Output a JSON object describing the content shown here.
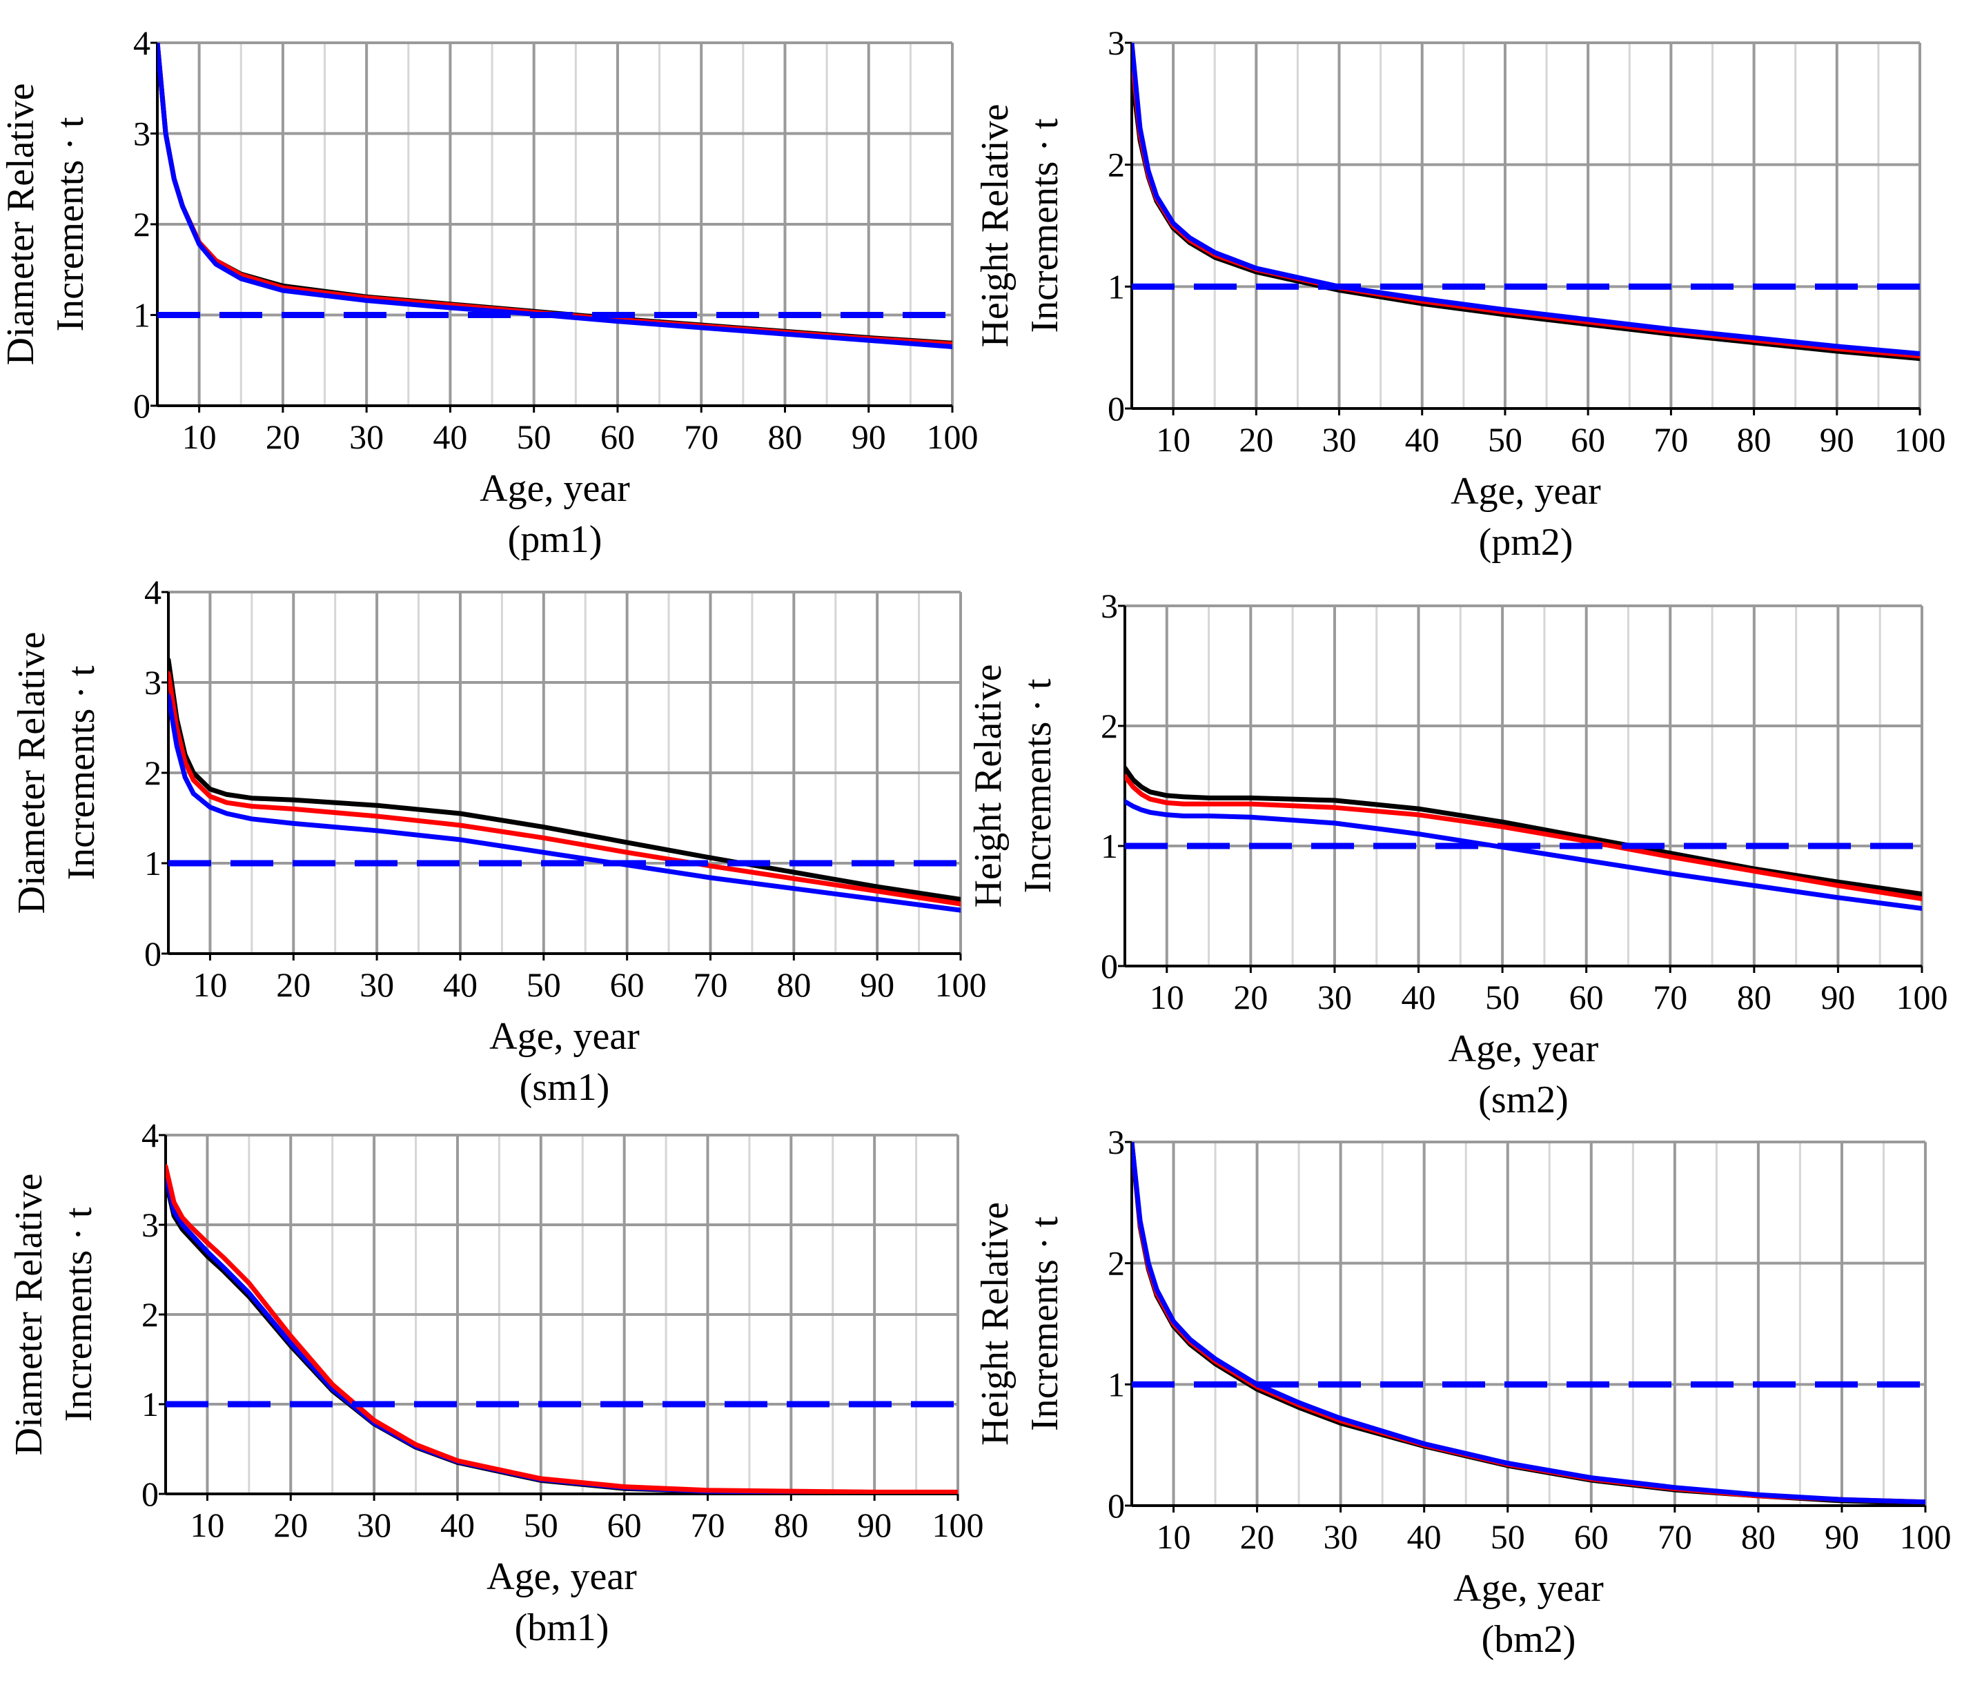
{
  "chart_data": [
    {
      "id": "pm1",
      "type": "line",
      "caption": "(pm1)",
      "xlabel": "Age, year",
      "ylabel": [
        "Diameter Relative",
        "Increments · t"
      ],
      "xlim": [
        5,
        100
      ],
      "ylim": [
        0,
        4
      ],
      "xticks": [
        10,
        20,
        30,
        40,
        50,
        60,
        70,
        80,
        90,
        100
      ],
      "yticks": [
        0,
        1,
        2,
        3,
        4
      ],
      "reference": {
        "y": 1,
        "color": "#0000ff",
        "style": "dashed"
      },
      "series": [
        {
          "name": "black",
          "color": "#000000",
          "x": [
            5,
            6,
            7,
            8,
            10,
            12,
            15,
            20,
            30,
            40,
            50,
            60,
            70,
            80,
            90,
            100
          ],
          "y": [
            4.0,
            3.0,
            2.5,
            2.2,
            1.8,
            1.6,
            1.45,
            1.32,
            1.2,
            1.12,
            1.04,
            0.96,
            0.89,
            0.82,
            0.75,
            0.69
          ]
        },
        {
          "name": "red",
          "color": "#ff0000",
          "x": [
            5,
            6,
            7,
            8,
            10,
            12,
            15,
            20,
            30,
            40,
            50,
            60,
            70,
            80,
            90,
            100
          ],
          "y": [
            4.0,
            3.0,
            2.5,
            2.2,
            1.8,
            1.6,
            1.44,
            1.3,
            1.19,
            1.11,
            1.03,
            0.95,
            0.88,
            0.81,
            0.74,
            0.68
          ]
        },
        {
          "name": "blue",
          "color": "#0000ff",
          "x": [
            5,
            6,
            7,
            8,
            10,
            12,
            15,
            20,
            30,
            40,
            50,
            60,
            70,
            80,
            90,
            100
          ],
          "y": [
            4.0,
            3.0,
            2.5,
            2.2,
            1.78,
            1.56,
            1.4,
            1.27,
            1.16,
            1.08,
            1.01,
            0.93,
            0.86,
            0.79,
            0.72,
            0.65
          ]
        }
      ]
    },
    {
      "id": "pm2",
      "type": "line",
      "caption": "(pm2)",
      "xlabel": "Age, year",
      "ylabel": [
        "Height Relative",
        "Increments · t"
      ],
      "xlim": [
        5,
        100
      ],
      "ylim": [
        0,
        3
      ],
      "xticks": [
        10,
        20,
        30,
        40,
        50,
        60,
        70,
        80,
        90,
        100
      ],
      "yticks": [
        0,
        1,
        2,
        3
      ],
      "reference": {
        "y": 1,
        "color": "#0000ff",
        "style": "dashed"
      },
      "series": [
        {
          "name": "black",
          "color": "#000000",
          "x": [
            5,
            6,
            7,
            8,
            10,
            12,
            15,
            20,
            30,
            40,
            50,
            60,
            70,
            80,
            90,
            100
          ],
          "y": [
            2.75,
            2.2,
            1.9,
            1.7,
            1.48,
            1.36,
            1.24,
            1.12,
            0.97,
            0.86,
            0.77,
            0.69,
            0.61,
            0.54,
            0.47,
            0.41
          ]
        },
        {
          "name": "red",
          "color": "#ff0000",
          "x": [
            5,
            6,
            7,
            8,
            10,
            12,
            15,
            20,
            30,
            40,
            50,
            60,
            70,
            80,
            90,
            100
          ],
          "y": [
            2.9,
            2.25,
            1.92,
            1.72,
            1.5,
            1.38,
            1.26,
            1.14,
            0.99,
            0.88,
            0.79,
            0.71,
            0.63,
            0.56,
            0.49,
            0.43
          ]
        },
        {
          "name": "blue",
          "color": "#0000ff",
          "x": [
            5,
            6,
            7,
            8,
            10,
            12,
            15,
            20,
            30,
            40,
            50,
            60,
            70,
            80,
            90,
            100
          ],
          "y": [
            3.0,
            2.3,
            1.95,
            1.74,
            1.52,
            1.4,
            1.28,
            1.15,
            1.0,
            0.9,
            0.81,
            0.73,
            0.65,
            0.58,
            0.51,
            0.45
          ]
        }
      ]
    },
    {
      "id": "sm1",
      "type": "line",
      "caption": "(sm1)",
      "xlabel": "Age, year",
      "ylabel": [
        "Diameter Relative",
        "Increments · t"
      ],
      "xlim": [
        5,
        100
      ],
      "ylim": [
        0,
        4
      ],
      "xticks": [
        10,
        20,
        30,
        40,
        50,
        60,
        70,
        80,
        90,
        100
      ],
      "yticks": [
        0,
        1,
        2,
        3,
        4
      ],
      "reference": {
        "y": 1,
        "color": "#0000ff",
        "style": "dashed"
      },
      "series": [
        {
          "name": "black",
          "color": "#000000",
          "x": [
            5,
            6,
            7,
            8,
            10,
            12,
            15,
            20,
            30,
            40,
            50,
            60,
            70,
            80,
            90,
            100
          ],
          "y": [
            3.25,
            2.6,
            2.2,
            2.0,
            1.82,
            1.76,
            1.72,
            1.7,
            1.64,
            1.55,
            1.4,
            1.23,
            1.06,
            0.9,
            0.74,
            0.6
          ]
        },
        {
          "name": "red",
          "color": "#ff0000",
          "x": [
            5,
            6,
            7,
            8,
            10,
            12,
            15,
            20,
            30,
            40,
            50,
            60,
            70,
            80,
            90,
            100
          ],
          "y": [
            3.1,
            2.5,
            2.12,
            1.92,
            1.74,
            1.67,
            1.63,
            1.6,
            1.52,
            1.42,
            1.28,
            1.12,
            0.97,
            0.83,
            0.69,
            0.55
          ]
        },
        {
          "name": "blue",
          "color": "#0000ff",
          "x": [
            5,
            6,
            7,
            8,
            10,
            12,
            15,
            20,
            30,
            40,
            50,
            60,
            70,
            80,
            90,
            100
          ],
          "y": [
            2.85,
            2.3,
            1.95,
            1.77,
            1.62,
            1.55,
            1.49,
            1.44,
            1.36,
            1.26,
            1.12,
            0.98,
            0.84,
            0.72,
            0.6,
            0.48
          ]
        }
      ]
    },
    {
      "id": "sm2",
      "type": "line",
      "caption": "(sm2)",
      "xlabel": "Age, year",
      "ylabel": [
        "Height Relative",
        "Increments · t"
      ],
      "xlim": [
        5,
        100
      ],
      "ylim": [
        0,
        3
      ],
      "xticks": [
        10,
        20,
        30,
        40,
        50,
        60,
        70,
        80,
        90,
        100
      ],
      "yticks": [
        0,
        1,
        2,
        3
      ],
      "reference": {
        "y": 1,
        "color": "#0000ff",
        "style": "dashed"
      },
      "series": [
        {
          "name": "black",
          "color": "#000000",
          "x": [
            5,
            6,
            7,
            8,
            10,
            12,
            15,
            20,
            30,
            40,
            50,
            60,
            70,
            80,
            90,
            100
          ],
          "y": [
            1.65,
            1.55,
            1.49,
            1.45,
            1.42,
            1.41,
            1.4,
            1.4,
            1.38,
            1.31,
            1.2,
            1.07,
            0.94,
            0.81,
            0.7,
            0.6
          ]
        },
        {
          "name": "red",
          "color": "#ff0000",
          "x": [
            5,
            6,
            7,
            8,
            10,
            12,
            15,
            20,
            30,
            40,
            50,
            60,
            70,
            80,
            90,
            100
          ],
          "y": [
            1.58,
            1.49,
            1.43,
            1.39,
            1.36,
            1.35,
            1.35,
            1.35,
            1.32,
            1.26,
            1.16,
            1.04,
            0.91,
            0.79,
            0.67,
            0.56
          ]
        },
        {
          "name": "blue",
          "color": "#0000ff",
          "x": [
            5,
            6,
            7,
            8,
            10,
            12,
            15,
            20,
            30,
            40,
            50,
            60,
            70,
            80,
            90,
            100
          ],
          "y": [
            1.37,
            1.33,
            1.3,
            1.28,
            1.26,
            1.25,
            1.25,
            1.24,
            1.19,
            1.1,
            0.99,
            0.88,
            0.77,
            0.67,
            0.57,
            0.48
          ]
        }
      ]
    },
    {
      "id": "bm1",
      "type": "line",
      "caption": "(bm1)",
      "xlabel": "Age, year",
      "ylabel": [
        "Diameter Relative",
        "Increments · t"
      ],
      "xlim": [
        5,
        100
      ],
      "ylim": [
        0,
        4
      ],
      "xticks": [
        10,
        20,
        30,
        40,
        50,
        60,
        70,
        80,
        90,
        100
      ],
      "yticks": [
        0,
        1,
        2,
        3,
        4
      ],
      "reference": {
        "y": 1,
        "color": "#0000ff",
        "style": "dashed"
      },
      "series": [
        {
          "name": "black",
          "color": "#000000",
          "x": [
            5,
            6,
            7,
            8,
            10,
            12,
            15,
            20,
            25,
            30,
            35,
            40,
            50,
            60,
            70,
            80,
            90,
            100
          ],
          "y": [
            3.5,
            3.1,
            2.95,
            2.85,
            2.65,
            2.48,
            2.2,
            1.65,
            1.15,
            0.78,
            0.52,
            0.35,
            0.15,
            0.06,
            0.03,
            0.02,
            0.01,
            0.01
          ]
        },
        {
          "name": "blue",
          "color": "#0000ff",
          "x": [
            5,
            6,
            7,
            8,
            10,
            12,
            15,
            20,
            25,
            30,
            35,
            40,
            50,
            60,
            70,
            80,
            90,
            100
          ],
          "y": [
            3.55,
            3.15,
            3.0,
            2.9,
            2.7,
            2.52,
            2.24,
            1.68,
            1.17,
            0.79,
            0.53,
            0.36,
            0.16,
            0.07,
            0.03,
            0.02,
            0.01,
            0.01
          ]
        },
        {
          "name": "red",
          "color": "#ff0000",
          "x": [
            5,
            6,
            7,
            8,
            10,
            12,
            15,
            20,
            25,
            30,
            35,
            40,
            50,
            60,
            70,
            80,
            90,
            100
          ],
          "y": [
            3.65,
            3.25,
            3.08,
            2.98,
            2.8,
            2.63,
            2.35,
            1.76,
            1.22,
            0.82,
            0.55,
            0.37,
            0.17,
            0.08,
            0.04,
            0.03,
            0.02,
            0.02
          ]
        }
      ]
    },
    {
      "id": "bm2",
      "type": "line",
      "caption": "(bm2)",
      "xlabel": "Age, year",
      "ylabel": [
        "Height Relative",
        "Increments · t"
      ],
      "xlim": [
        5,
        100
      ],
      "ylim": [
        0,
        3
      ],
      "xticks": [
        10,
        20,
        30,
        40,
        50,
        60,
        70,
        80,
        90,
        100
      ],
      "yticks": [
        0,
        1,
        2,
        3
      ],
      "reference": {
        "y": 1,
        "color": "#0000ff",
        "style": "dashed"
      },
      "series": [
        {
          "name": "black",
          "color": "#000000",
          "x": [
            5,
            6,
            7,
            8,
            10,
            12,
            15,
            20,
            25,
            30,
            40,
            50,
            60,
            70,
            80,
            90,
            100
          ],
          "y": [
            3.0,
            2.3,
            1.95,
            1.73,
            1.48,
            1.33,
            1.17,
            0.96,
            0.81,
            0.68,
            0.49,
            0.33,
            0.21,
            0.13,
            0.08,
            0.04,
            0.02
          ]
        },
        {
          "name": "red",
          "color": "#ff0000",
          "x": [
            5,
            6,
            7,
            8,
            10,
            12,
            15,
            20,
            25,
            30,
            40,
            50,
            60,
            70,
            80,
            90,
            100
          ],
          "y": [
            3.0,
            2.32,
            1.97,
            1.75,
            1.5,
            1.35,
            1.19,
            0.98,
            0.83,
            0.7,
            0.5,
            0.34,
            0.22,
            0.14,
            0.08,
            0.05,
            0.03
          ]
        },
        {
          "name": "blue",
          "color": "#0000ff",
          "x": [
            5,
            6,
            7,
            8,
            10,
            12,
            15,
            20,
            25,
            30,
            40,
            50,
            60,
            70,
            80,
            90,
            100
          ],
          "y": [
            3.0,
            2.35,
            2.0,
            1.78,
            1.52,
            1.37,
            1.21,
            1.0,
            0.85,
            0.72,
            0.51,
            0.35,
            0.23,
            0.15,
            0.09,
            0.05,
            0.03
          ]
        }
      ]
    }
  ]
}
